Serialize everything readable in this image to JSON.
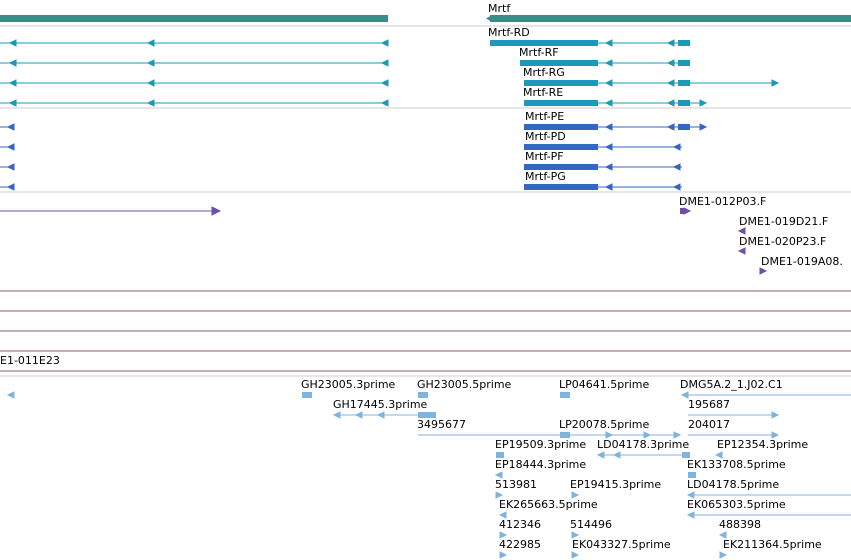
{
  "browser": {
    "gene": {
      "label": "Mrtf",
      "color": "#3d8c8c"
    },
    "transcripts_cyan": {
      "color": "#1b99b6",
      "items": [
        {
          "label": "Mrtf-RD"
        },
        {
          "label": "Mrtf-RF"
        },
        {
          "label": "Mrtf-RG"
        },
        {
          "label": "Mrtf-RE"
        }
      ]
    },
    "transcripts_blue": {
      "color": "#3566c6",
      "items": [
        {
          "label": "Mrtf-PE"
        },
        {
          "label": "Mrtf-PD"
        },
        {
          "label": "Mrtf-PF"
        },
        {
          "label": "Mrtf-PG"
        }
      ]
    },
    "clones_purple": {
      "color": "#6e4fa8",
      "items": [
        {
          "label": "DME1-012P03.F"
        },
        {
          "label": "DME1-019D21.F"
        },
        {
          "label": "DME1-020P23.F"
        },
        {
          "label": "DME1-019A08."
        }
      ]
    },
    "clone_band": {
      "label": "E1-011E23",
      "color": "#8c5a7a"
    },
    "ests": {
      "color": "#7fb3e0",
      "labels": [
        "GH23005.3prime",
        "GH23005.5prime",
        "LP04641.5prime",
        "DMG5A.2_1.J02.C1",
        "GH17445.3prime",
        "195687",
        "3495677",
        "LP20078.5prime",
        "204017",
        "EP19509.3prime",
        "LD04178.3prime",
        "EP12354.3prime",
        "EP18444.3prime",
        "EK133708.5prime",
        "513981",
        "EP19415.3prime",
        "LD04178.5prime",
        "EK265663.5prime",
        "EK065303.5prime",
        "412346",
        "514496",
        "488398",
        "422985",
        "EK043327.5prime",
        "EK211364.5prime"
      ]
    }
  }
}
